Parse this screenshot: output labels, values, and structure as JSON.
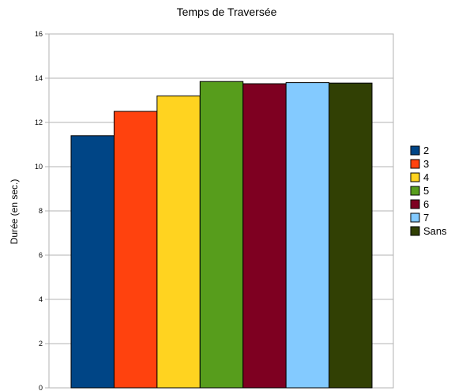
{
  "chart_data": {
    "type": "bar",
    "title": "Temps de Traversée",
    "xlabel": "",
    "ylabel": "Durée (en sec.)",
    "ylim": [
      0,
      16
    ],
    "yticks": [
      0,
      2,
      4,
      6,
      8,
      10,
      12,
      14,
      16
    ],
    "grid": true,
    "legend_position": "right",
    "series": [
      {
        "name": "2",
        "value": 11.4,
        "color": "#004586"
      },
      {
        "name": "3",
        "value": 12.5,
        "color": "#FF420E"
      },
      {
        "name": "4",
        "value": 13.2,
        "color": "#FFD320"
      },
      {
        "name": "5",
        "value": 13.85,
        "color": "#579D1C"
      },
      {
        "name": "6",
        "value": 13.75,
        "color": "#7E0021"
      },
      {
        "name": "7",
        "value": 13.8,
        "color": "#83CAFF"
      },
      {
        "name": "Sans",
        "value": 13.78,
        "color": "#314004"
      }
    ]
  }
}
